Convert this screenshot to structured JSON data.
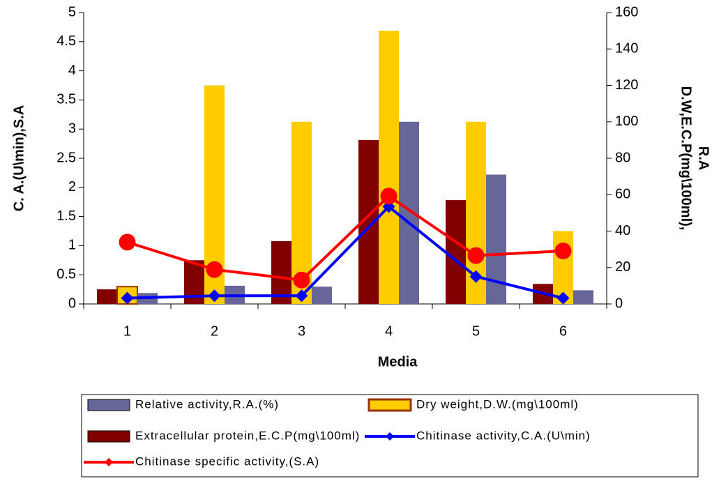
{
  "chart_data": {
    "type": "bar-line",
    "x_label": "Media",
    "y_label": "C. A.(U\\min),S.A",
    "y2_label": [
      "D.W,E.C.P(mg\\100ml),",
      "R.A"
    ],
    "categories": [
      "1",
      "2",
      "3",
      "4",
      "5",
      "6"
    ],
    "ylim": [
      0,
      5
    ],
    "yticks": [
      0,
      0.5,
      1,
      1.5,
      2,
      2.5,
      3,
      3.5,
      4,
      4.5,
      5
    ],
    "y2lim": [
      0,
      160
    ],
    "y2ticks": [
      0,
      20,
      40,
      60,
      80,
      100,
      120,
      140,
      160
    ],
    "series": [
      {
        "name": "Extracellular protein,E.C.P(mg\\100ml)",
        "type": "bar",
        "axis": "y2",
        "color": "#800000",
        "values": [
          8,
          24,
          34.5,
          90,
          57,
          11
        ]
      },
      {
        "name": "Dry weight,D.W.(mg\\100ml)",
        "type": "bar",
        "axis": "y2",
        "color": "#ffcc00",
        "values": [
          9.5,
          120,
          100,
          150,
          100,
          40
        ]
      },
      {
        "name": "Relative activity,R.A.(%)",
        "type": "bar",
        "axis": "y2",
        "color": "#666699",
        "values": [
          6,
          10,
          9.5,
          100,
          71,
          7.5
        ]
      },
      {
        "name": "Chitinase activity,C.A.(U\\min)",
        "type": "line",
        "color": "#0000ff",
        "values": [
          0.1,
          0.14,
          0.14,
          1.67,
          0.47,
          0.1
        ]
      },
      {
        "name": "Chitinase specific activity,(S.A)",
        "type": "line",
        "color": "#ff0000",
        "values": [
          1.06,
          0.59,
          0.41,
          1.85,
          0.83,
          0.91
        ]
      }
    ]
  }
}
